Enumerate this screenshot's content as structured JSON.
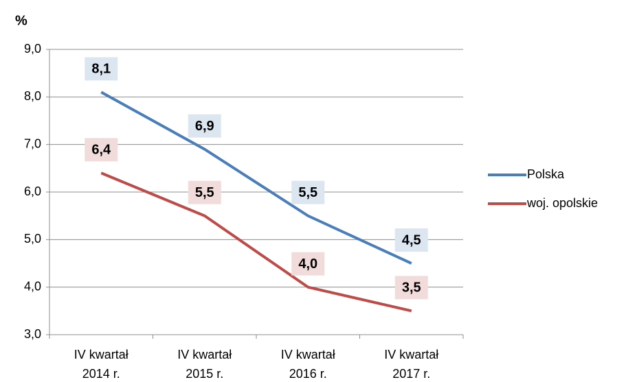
{
  "chart_data": {
    "type": "line",
    "y_label": "%",
    "categories": [
      "IV kwartał\n2014 r.",
      "IV kwartał\n2015 r.",
      "IV kwartał\n2016 r.",
      "IV kwartał\n2017 r."
    ],
    "series": [
      {
        "name": "Polska",
        "color": "#4a7ebb",
        "label_fill": "#dce6f1",
        "values": [
          8.1,
          6.9,
          5.5,
          4.5
        ],
        "value_labels": [
          "8,1",
          "6,9",
          "5,5",
          "4,5"
        ]
      },
      {
        "name": "woj. opolskie",
        "color": "#be4b48",
        "label_fill": "#f2dcdb",
        "values": [
          6.4,
          5.5,
          4.0,
          3.5
        ],
        "value_labels": [
          "6,4",
          "5,5",
          "4,0",
          "3,5"
        ]
      }
    ],
    "ylim": [
      3,
      9
    ],
    "yticks": [
      {
        "value": 3,
        "label": "3,0"
      },
      {
        "value": 4,
        "label": "4,0"
      },
      {
        "value": 5,
        "label": "5,0"
      },
      {
        "value": 6,
        "label": "6,0"
      },
      {
        "value": 7,
        "label": "7,0"
      },
      {
        "value": 8,
        "label": "8,0"
      },
      {
        "value": 9,
        "label": "9,0"
      }
    ],
    "grid": true,
    "legend": "right"
  }
}
